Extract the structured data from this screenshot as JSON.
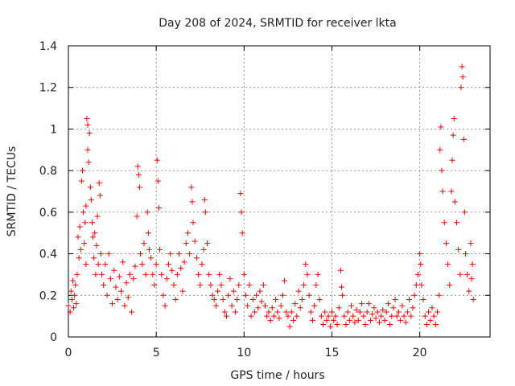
{
  "chart_data": {
    "type": "scatter",
    "title": "Day 208 of 2024, SRMTID for receiver lkta",
    "xlabel": "GPS time / hours",
    "ylabel": "SRMTID / TECUs",
    "xlim": [
      0,
      24
    ],
    "ylim": [
      0,
      1.4
    ],
    "x_ticks": [
      0,
      5,
      10,
      15,
      20
    ],
    "x_tick_labels": [
      "0",
      "5",
      "10",
      "15",
      "20"
    ],
    "y_ticks": [
      0,
      0.2,
      0.4,
      0.6,
      0.8,
      1.0,
      1.2,
      1.4
    ],
    "y_tick_labels": [
      "0",
      "0.2",
      "0.4",
      "0.6",
      "0.8",
      "1",
      "1.2",
      "1.4"
    ],
    "grid": true,
    "marker": "plus",
    "marker_color": "#ff0000",
    "series": [
      {
        "name": "SRMTID",
        "points": [
          [
            0.0,
            0.15
          ],
          [
            0.1,
            0.12
          ],
          [
            0.15,
            0.22
          ],
          [
            0.2,
            0.18
          ],
          [
            0.25,
            0.27
          ],
          [
            0.3,
            0.14
          ],
          [
            0.35,
            0.2
          ],
          [
            0.4,
            0.25
          ],
          [
            0.45,
            0.16
          ],
          [
            0.5,
            0.3
          ],
          [
            0.55,
            0.48
          ],
          [
            0.6,
            0.38
          ],
          [
            0.65,
            0.53
          ],
          [
            0.7,
            0.42
          ],
          [
            0.75,
            0.75
          ],
          [
            0.8,
            0.8
          ],
          [
            0.85,
            0.6
          ],
          [
            0.9,
            0.45
          ],
          [
            0.95,
            0.55
          ],
          [
            1.0,
            0.63
          ],
          [
            1.0,
            0.35
          ],
          [
            1.05,
            1.05
          ],
          [
            1.1,
            0.9
          ],
          [
            1.1,
            1.02
          ],
          [
            1.15,
            0.84
          ],
          [
            1.2,
            0.98
          ],
          [
            1.25,
            0.72
          ],
          [
            1.3,
            0.66
          ],
          [
            1.35,
            0.55
          ],
          [
            1.4,
            0.48
          ],
          [
            1.45,
            0.38
          ],
          [
            1.5,
            0.5
          ],
          [
            1.55,
            0.3
          ],
          [
            1.6,
            0.44
          ],
          [
            1.65,
            0.58
          ],
          [
            1.7,
            0.35
          ],
          [
            1.75,
            0.74
          ],
          [
            1.8,
            0.68
          ],
          [
            1.85,
            0.4
          ],
          [
            1.9,
            0.3
          ],
          [
            2.0,
            0.25
          ],
          [
            2.1,
            0.35
          ],
          [
            2.2,
            0.2
          ],
          [
            2.3,
            0.4
          ],
          [
            2.4,
            0.28
          ],
          [
            2.5,
            0.16
          ],
          [
            2.6,
            0.32
          ],
          [
            2.7,
            0.24
          ],
          [
            2.8,
            0.18
          ],
          [
            2.9,
            0.29
          ],
          [
            3.0,
            0.22
          ],
          [
            3.1,
            0.36
          ],
          [
            3.2,
            0.15
          ],
          [
            3.3,
            0.26
          ],
          [
            3.4,
            0.19
          ],
          [
            3.5,
            0.3
          ],
          [
            3.6,
            0.12
          ],
          [
            3.7,
            0.28
          ],
          [
            3.8,
            0.34
          ],
          [
            3.9,
            0.58
          ],
          [
            3.95,
            0.82
          ],
          [
            4.0,
            0.78
          ],
          [
            4.05,
            0.72
          ],
          [
            4.1,
            0.4
          ],
          [
            4.2,
            0.35
          ],
          [
            4.3,
            0.45
          ],
          [
            4.4,
            0.3
          ],
          [
            4.5,
            0.6
          ],
          [
            4.55,
            0.5
          ],
          [
            4.6,
            0.42
          ],
          [
            4.7,
            0.38
          ],
          [
            4.8,
            0.3
          ],
          [
            4.9,
            0.25
          ],
          [
            5.0,
            0.35
          ],
          [
            5.05,
            0.85
          ],
          [
            5.1,
            0.75
          ],
          [
            5.15,
            0.62
          ],
          [
            5.2,
            0.42
          ],
          [
            5.3,
            0.3
          ],
          [
            5.4,
            0.2
          ],
          [
            5.5,
            0.15
          ],
          [
            5.6,
            0.28
          ],
          [
            5.7,
            0.35
          ],
          [
            5.8,
            0.4
          ],
          [
            5.9,
            0.32
          ],
          [
            6.0,
            0.25
          ],
          [
            6.1,
            0.18
          ],
          [
            6.2,
            0.3
          ],
          [
            6.3,
            0.4
          ],
          [
            6.4,
            0.33
          ],
          [
            6.5,
            0.22
          ],
          [
            6.6,
            0.36
          ],
          [
            6.7,
            0.45
          ],
          [
            6.8,
            0.5
          ],
          [
            6.9,
            0.4
          ],
          [
            7.0,
            0.72
          ],
          [
            7.05,
            0.65
          ],
          [
            7.1,
            0.55
          ],
          [
            7.2,
            0.46
          ],
          [
            7.3,
            0.38
          ],
          [
            7.4,
            0.3
          ],
          [
            7.5,
            0.25
          ],
          [
            7.6,
            0.35
          ],
          [
            7.7,
            0.42
          ],
          [
            7.75,
            0.66
          ],
          [
            7.8,
            0.6
          ],
          [
            7.9,
            0.45
          ],
          [
            8.0,
            0.3
          ],
          [
            8.1,
            0.25
          ],
          [
            8.2,
            0.2
          ],
          [
            8.3,
            0.18
          ],
          [
            8.4,
            0.15
          ],
          [
            8.5,
            0.22
          ],
          [
            8.6,
            0.3
          ],
          [
            8.7,
            0.25
          ],
          [
            8.8,
            0.18
          ],
          [
            8.9,
            0.12
          ],
          [
            9.0,
            0.1
          ],
          [
            9.1,
            0.2
          ],
          [
            9.2,
            0.28
          ],
          [
            9.3,
            0.15
          ],
          [
            9.4,
            0.22
          ],
          [
            9.5,
            0.12
          ],
          [
            9.6,
            0.18
          ],
          [
            9.7,
            0.25
          ],
          [
            9.8,
            0.69
          ],
          [
            9.85,
            0.6
          ],
          [
            9.9,
            0.5
          ],
          [
            10.0,
            0.3
          ],
          [
            10.1,
            0.2
          ],
          [
            10.2,
            0.15
          ],
          [
            10.3,
            0.25
          ],
          [
            10.4,
            0.1
          ],
          [
            10.5,
            0.18
          ],
          [
            10.6,
            0.12
          ],
          [
            10.7,
            0.2
          ],
          [
            10.8,
            0.14
          ],
          [
            10.9,
            0.22
          ],
          [
            11.0,
            0.17
          ],
          [
            11.1,
            0.25
          ],
          [
            11.2,
            0.15
          ],
          [
            11.3,
            0.1
          ],
          [
            11.4,
            0.12
          ],
          [
            11.5,
            0.08
          ],
          [
            11.6,
            0.14
          ],
          [
            11.7,
            0.1
          ],
          [
            11.8,
            0.18
          ],
          [
            11.9,
            0.12
          ],
          [
            12.0,
            0.09
          ],
          [
            12.1,
            0.15
          ],
          [
            12.2,
            0.2
          ],
          [
            12.3,
            0.27
          ],
          [
            12.4,
            0.12
          ],
          [
            12.5,
            0.1
          ],
          [
            12.6,
            0.05
          ],
          [
            12.7,
            0.12
          ],
          [
            12.8,
            0.08
          ],
          [
            12.9,
            0.16
          ],
          [
            13.0,
            0.1
          ],
          [
            13.1,
            0.22
          ],
          [
            13.2,
            0.14
          ],
          [
            13.3,
            0.18
          ],
          [
            13.4,
            0.25
          ],
          [
            13.5,
            0.35
          ],
          [
            13.6,
            0.3
          ],
          [
            13.7,
            0.2
          ],
          [
            13.8,
            0.12
          ],
          [
            13.9,
            0.08
          ],
          [
            14.0,
            0.15
          ],
          [
            14.1,
            0.25
          ],
          [
            14.2,
            0.3
          ],
          [
            14.3,
            0.18
          ],
          [
            14.4,
            0.1
          ],
          [
            14.5,
            0.06
          ],
          [
            14.6,
            0.12
          ],
          [
            14.7,
            0.08
          ],
          [
            14.8,
            0.1
          ],
          [
            14.9,
            0.05
          ],
          [
            15.0,
            0.12
          ],
          [
            15.1,
            0.08
          ],
          [
            15.2,
            0.1
          ],
          [
            15.3,
            0.06
          ],
          [
            15.4,
            0.14
          ],
          [
            15.5,
            0.32
          ],
          [
            15.55,
            0.24
          ],
          [
            15.6,
            0.2
          ],
          [
            15.7,
            0.1
          ],
          [
            15.8,
            0.06
          ],
          [
            15.9,
            0.12
          ],
          [
            16.0,
            0.08
          ],
          [
            16.1,
            0.15
          ],
          [
            16.2,
            0.1
          ],
          [
            16.3,
            0.07
          ],
          [
            16.4,
            0.13
          ],
          [
            16.5,
            0.08
          ],
          [
            16.6,
            0.12
          ],
          [
            16.7,
            0.16
          ],
          [
            16.8,
            0.1
          ],
          [
            16.9,
            0.06
          ],
          [
            17.0,
            0.12
          ],
          [
            17.1,
            0.16
          ],
          [
            17.2,
            0.08
          ],
          [
            17.3,
            0.11
          ],
          [
            17.4,
            0.14
          ],
          [
            17.5,
            0.09
          ],
          [
            17.6,
            0.12
          ],
          [
            17.7,
            0.07
          ],
          [
            17.8,
            0.1
          ],
          [
            17.9,
            0.13
          ],
          [
            18.0,
            0.08
          ],
          [
            18.1,
            0.12
          ],
          [
            18.2,
            0.16
          ],
          [
            18.3,
            0.06
          ],
          [
            18.4,
            0.1
          ],
          [
            18.5,
            0.14
          ],
          [
            18.6,
            0.18
          ],
          [
            18.7,
            0.1
          ],
          [
            18.8,
            0.12
          ],
          [
            18.9,
            0.08
          ],
          [
            19.0,
            0.15
          ],
          [
            19.1,
            0.1
          ],
          [
            19.2,
            0.07
          ],
          [
            19.3,
            0.12
          ],
          [
            19.4,
            0.18
          ],
          [
            19.5,
            0.1
          ],
          [
            19.6,
            0.14
          ],
          [
            19.7,
            0.2
          ],
          [
            19.8,
            0.25
          ],
          [
            19.9,
            0.3
          ],
          [
            20.0,
            0.4
          ],
          [
            20.05,
            0.35
          ],
          [
            20.1,
            0.25
          ],
          [
            20.2,
            0.18
          ],
          [
            20.3,
            0.1
          ],
          [
            20.4,
            0.06
          ],
          [
            20.5,
            0.12
          ],
          [
            20.6,
            0.08
          ],
          [
            20.7,
            0.14
          ],
          [
            20.8,
            0.1
          ],
          [
            20.9,
            0.06
          ],
          [
            21.0,
            0.12
          ],
          [
            21.1,
            0.2
          ],
          [
            21.15,
            0.9
          ],
          [
            21.2,
            1.01
          ],
          [
            21.25,
            0.8
          ],
          [
            21.3,
            0.7
          ],
          [
            21.4,
            0.55
          ],
          [
            21.5,
            0.45
          ],
          [
            21.6,
            0.35
          ],
          [
            21.7,
            0.25
          ],
          [
            21.8,
            0.7
          ],
          [
            21.85,
            0.85
          ],
          [
            21.9,
            0.97
          ],
          [
            21.95,
            1.05
          ],
          [
            22.0,
            0.65
          ],
          [
            22.1,
            0.55
          ],
          [
            22.2,
            0.42
          ],
          [
            22.3,
            0.3
          ],
          [
            22.35,
            1.2
          ],
          [
            22.4,
            1.3
          ],
          [
            22.45,
            1.25
          ],
          [
            22.5,
            0.95
          ],
          [
            22.55,
            0.6
          ],
          [
            22.6,
            0.4
          ],
          [
            22.7,
            0.3
          ],
          [
            22.8,
            0.22
          ],
          [
            22.9,
            0.45
          ],
          [
            23.0,
            0.35
          ],
          [
            23.05,
            0.18
          ],
          [
            22.95,
            0.28
          ]
        ]
      }
    ]
  }
}
